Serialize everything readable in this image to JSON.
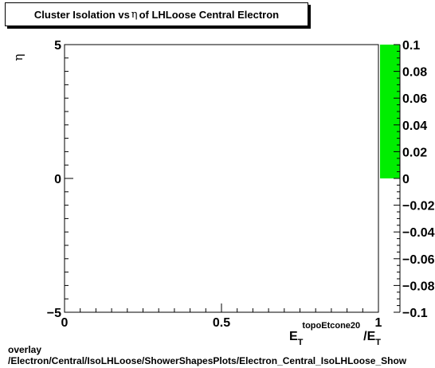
{
  "chart_data": {
    "type": "heatmap",
    "title_parts": [
      "Cluster Isolation vs ",
      "η",
      " of LHLoose Central  Electron"
    ],
    "xlabel": {
      "base": "E",
      "sub": "T",
      "sup": "topoEtcone20",
      "sep": "/E",
      "sub2": "T"
    },
    "ylabel": "η",
    "xlim": [
      0,
      1
    ],
    "ylim": [
      -5,
      5
    ],
    "x_ticks": [
      "0",
      "0.5",
      "1"
    ],
    "y_ticks": [
      "−5",
      "0",
      "5"
    ],
    "z_range": [
      -0.1,
      0.1
    ],
    "z_ticks": [
      "−0.1",
      "−0.08",
      "−0.06",
      "−0.04",
      "−0.02",
      "0",
      "0.02",
      "0.04",
      "0.06",
      "0.08",
      "0.1"
    ],
    "colorbar_fill": {
      "from": 0,
      "to": 0.1,
      "color": "#00ee00"
    },
    "points": []
  },
  "footer": {
    "line1": "overlay",
    "line2": "/Electron/Central/IsoLHLoose/ShowerShapesPlots/Electron_Central_IsoLHLoose_Show"
  }
}
